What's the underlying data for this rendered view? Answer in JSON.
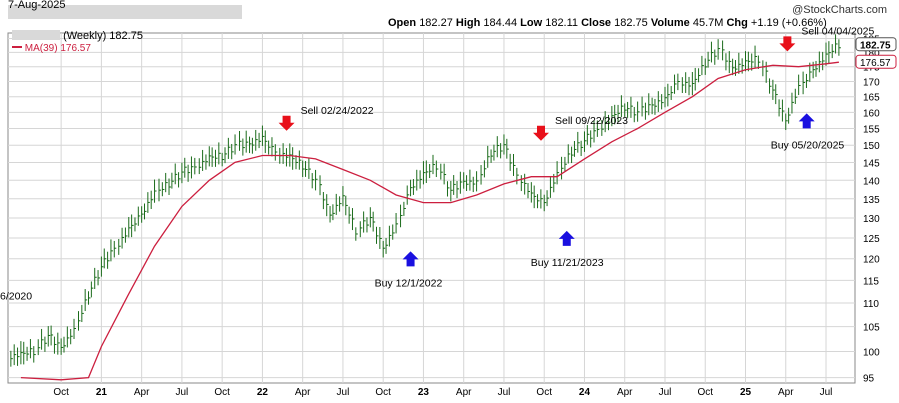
{
  "header": {
    "date": "7-Aug-2025",
    "ticker_label": "(Weekly) 182.75",
    "ma_label": "MA(39) 176.57",
    "open_label": "Open",
    "open": "182.27",
    "high_label": "High",
    "high": "184.44",
    "low_label": "Low",
    "low": "182.11",
    "close_label": "Close",
    "close": "182.75",
    "volume_label": "Volume",
    "volume": "45.7M",
    "chg_label": "Chg",
    "chg": "+1.19 (+0.66%)",
    "watermark": "@StockCharts.com"
  },
  "colors": {
    "price": "#1a6b1a",
    "ma": "#cc1f3f",
    "sell_arrow": "#e8101a",
    "buy_arrow": "#1a10e0",
    "grid": "#d6d6d6"
  },
  "chart_data": {
    "type": "line",
    "x_ticks": [
      "Oct",
      "21",
      "Apr",
      "Jul",
      "Oct",
      "22",
      "Apr",
      "Jul",
      "Oct",
      "23",
      "Apr",
      "Jul",
      "Oct",
      "24",
      "Apr",
      "Jul",
      "Oct",
      "25",
      "Apr",
      "Jul"
    ],
    "y_ticks": [
      95,
      100,
      105,
      110,
      115,
      120,
      125,
      130,
      135,
      140,
      145,
      150,
      155,
      160,
      165,
      170,
      175,
      180,
      185
    ],
    "ylim": [
      94,
      187
    ],
    "scale": "log",
    "grid": true,
    "last_price_label": "182.75",
    "last_ma_label": "176.57",
    "series": [
      {
        "name": "(Weekly) 182.75",
        "kind": "ohlc",
        "x": [
          2020.5,
          2020.58,
          2020.67,
          2020.75,
          2020.83,
          2020.92,
          2021.0,
          2021.08,
          2021.17,
          2021.25,
          2021.33,
          2021.42,
          2021.5,
          2021.58,
          2021.67,
          2021.75,
          2021.83,
          2021.92,
          2022.0,
          2022.08,
          2022.17,
          2022.25,
          2022.33,
          2022.42,
          2022.5,
          2022.58,
          2022.67,
          2022.75,
          2022.83,
          2022.92,
          2023.0,
          2023.08,
          2023.17,
          2023.25,
          2023.33,
          2023.42,
          2023.5,
          2023.58,
          2023.67,
          2023.75,
          2023.83,
          2023.92,
          2024.0,
          2024.08,
          2024.17,
          2024.25,
          2024.33,
          2024.42,
          2024.5,
          2024.58,
          2024.67,
          2024.75,
          2024.83,
          2024.92,
          2025.0,
          2025.08,
          2025.17,
          2025.25,
          2025.33,
          2025.42,
          2025.5,
          2025.58
        ],
        "close": [
          99,
          100,
          103,
          101,
          104,
          112,
          118,
          123,
          127,
          131,
          136,
          139,
          142,
          144,
          146,
          147,
          150,
          151,
          152,
          148,
          146,
          144,
          140,
          131,
          135,
          127,
          130,
          123,
          128,
          138,
          141,
          144,
          137,
          140,
          139,
          148,
          150,
          142,
          136,
          134,
          141,
          148,
          151,
          155,
          158,
          162,
          160,
          163,
          164,
          170,
          168,
          176,
          181,
          175,
          176,
          178,
          167,
          158,
          168,
          174,
          178,
          182.75
        ]
      },
      {
        "name": "MA(39) 176.57",
        "kind": "line",
        "x": [
          2020.5,
          2020.75,
          2020.92,
          2021.0,
          2021.17,
          2021.33,
          2021.5,
          2021.67,
          2021.83,
          2022.0,
          2022.17,
          2022.33,
          2022.5,
          2022.67,
          2022.83,
          2023.0,
          2023.17,
          2023.33,
          2023.5,
          2023.67,
          2023.83,
          2024.0,
          2024.17,
          2024.33,
          2024.5,
          2024.67,
          2024.83,
          2025.0,
          2025.17,
          2025.33,
          2025.5,
          2025.58
        ],
        "values": [
          95,
          94.6,
          95,
          101,
          112,
          123,
          133,
          140,
          145,
          147,
          147,
          146,
          143,
          140,
          136,
          134,
          134,
          136,
          139,
          141,
          141,
          146,
          151,
          155,
          160,
          165,
          171,
          174,
          175.5,
          175,
          176,
          176.57
        ]
      }
    ],
    "annotations": [
      {
        "label": "Sell 02/24/2022",
        "signal": "sell",
        "x": 2022.15,
        "y": 154
      },
      {
        "label": "Buy 12/1/2022",
        "signal": "buy",
        "x": 2022.92,
        "y": 122
      },
      {
        "label": "Sell 09/22/2023",
        "signal": "sell",
        "x": 2023.73,
        "y": 151
      },
      {
        "label": "Buy 11/21/2023",
        "signal": "buy",
        "x": 2023.89,
        "y": 127
      },
      {
        "label": "Sell 04/04/2025",
        "signal": "sell",
        "x": 2025.26,
        "y": 180
      },
      {
        "label": "Buy 05/20/2025",
        "signal": "buy",
        "x": 2025.38,
        "y": 160
      }
    ],
    "cutoff_label": "6/2020"
  }
}
